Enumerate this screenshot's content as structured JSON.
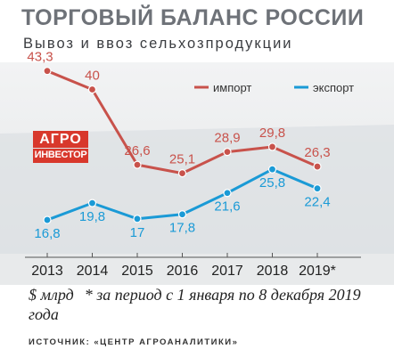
{
  "chart_data": {
    "type": "line",
    "title": "ТОРГОВЫЙ БАЛАНС РОССИИ",
    "subtitle": "Вывоз и ввоз сельхозпродукции",
    "categories": [
      "2013",
      "2014",
      "2015",
      "2016",
      "2017",
      "2018",
      "2019*"
    ],
    "series": [
      {
        "name": "импорт",
        "color": "#c8524b",
        "values": [
          43.3,
          40,
          26.6,
          25.1,
          28.9,
          29.8,
          26.3
        ],
        "labels": [
          "43,3",
          "40",
          "26,6",
          "25,1",
          "28,9",
          "29,8",
          "26,3"
        ]
      },
      {
        "name": "экспорт",
        "color": "#1a9ad6",
        "values": [
          16.8,
          19.8,
          17,
          17.8,
          21.6,
          25.8,
          22.4
        ],
        "labels": [
          "16,8",
          "19,8",
          "17",
          "17,8",
          "21,6",
          "25,8",
          "22,4"
        ]
      }
    ],
    "ylim": [
      10,
      48
    ],
    "grid": false,
    "legend": "top-right"
  },
  "logo": {
    "line1": "АГРО",
    "line2": "ИНВЕСТОР"
  },
  "footnote": {
    "unit": "$ млрд",
    "note": "* за период с 1 января по 8 декабря 2019 года"
  },
  "source": "ИСТОЧНИК: «ЦЕНТР АГРОАНАЛИТИКИ»"
}
